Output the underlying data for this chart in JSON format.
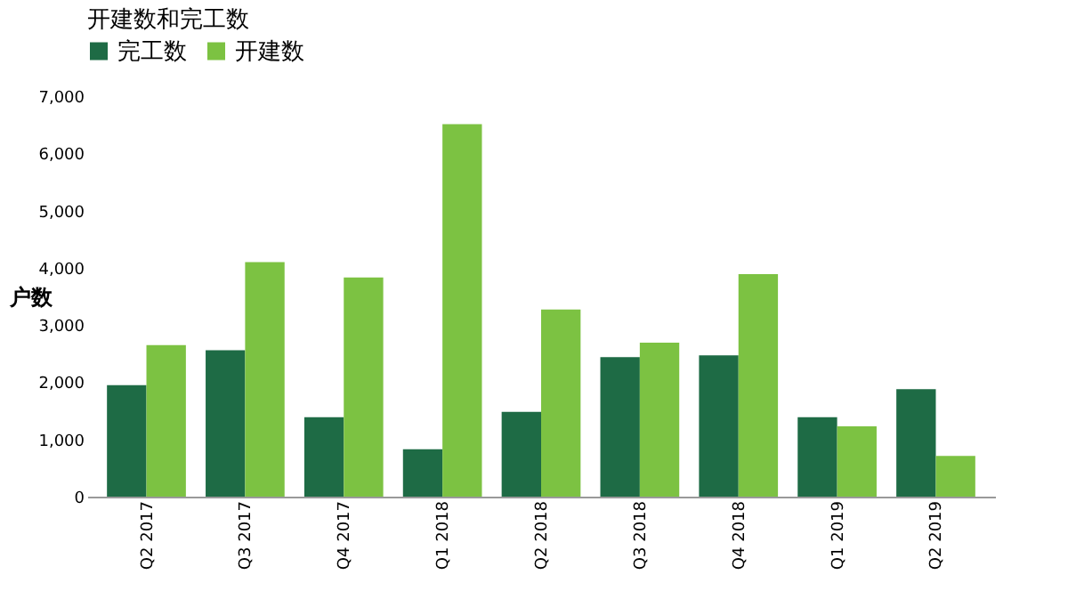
{
  "chart_data": {
    "type": "bar",
    "title": "开建数和完工数",
    "ylabel": "户数",
    "categories": [
      "Q2 2017",
      "Q3 2017",
      "Q4 2017",
      "Q1 2018",
      "Q2 2018",
      "Q3 2018",
      "Q4 2018",
      "Q1 2019",
      "Q2 2019"
    ],
    "series": [
      {
        "name": "完工数",
        "color": "#1e6b45",
        "values": [
          1950,
          2560,
          1390,
          830,
          1480,
          2440,
          2470,
          1390,
          1880
        ]
      },
      {
        "name": "开建数",
        "color": "#7cc242",
        "values": [
          2650,
          4100,
          3830,
          6510,
          3270,
          2690,
          3890,
          1230,
          710
        ]
      }
    ],
    "ylim": [
      0,
      7000
    ],
    "yticks": [
      0,
      {
        "value": 1000,
        "label": "1,000"
      },
      {
        "value": 2000,
        "label": "2,000"
      },
      {
        "value": 3000,
        "label": "3,000"
      },
      {
        "value": 4000,
        "label": "4,000"
      },
      {
        "value": 5000,
        "label": "5,000"
      },
      {
        "value": 6000,
        "label": "6,000"
      },
      {
        "value": 7000,
        "label": "7,000"
      }
    ],
    "grid": false,
    "legend": "top"
  }
}
